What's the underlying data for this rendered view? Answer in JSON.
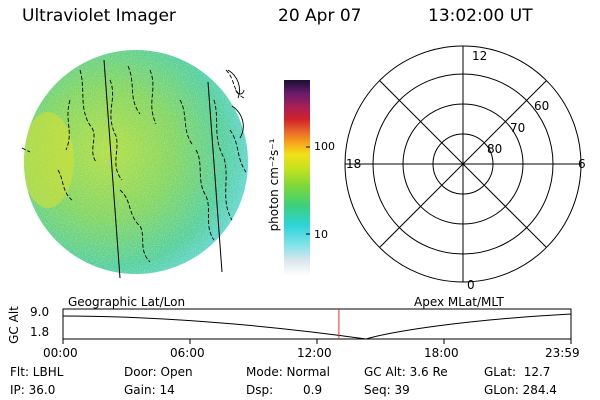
{
  "header": {
    "instrument": "Ultraviolet Imager",
    "date": "20 Apr 07",
    "time": "13:02:00 UT"
  },
  "colorbar": {
    "unit_label": "photon cm⁻²s⁻¹",
    "tick_100": "100",
    "tick_10": "10"
  },
  "polar_plot": {
    "top": "12",
    "left": "18",
    "right": "6",
    "bottom": "0",
    "ring_60": "60",
    "ring_70": "70",
    "ring_80": "80"
  },
  "timeline": {
    "ylabel": "GC Alt",
    "y_high": "9.0",
    "y_low": "1.8",
    "left_title": "Geographic Lat/Lon",
    "right_title": "Apex MLat/MLT",
    "ticks": [
      "00:00",
      "06:00",
      "12:00",
      "18:00",
      "23:59"
    ],
    "marker_fraction": 0.5431
  },
  "status": {
    "flt": "Flt: LBHL",
    "ip": "IP: 36.0",
    "door": "Door: Open",
    "gain": "Gain: 14",
    "mode": "Mode: Normal",
    "dsp_label": "Dsp:",
    "dsp_value": "0.9",
    "gc_alt": "GC Alt: 3.6 Re",
    "seq": "Seq: 39",
    "glat": "GLat:  12.7",
    "glon": "GLon: 284.4"
  },
  "colors": {
    "marker": "#e8302a",
    "earth_bg": "#7fd86a"
  }
}
